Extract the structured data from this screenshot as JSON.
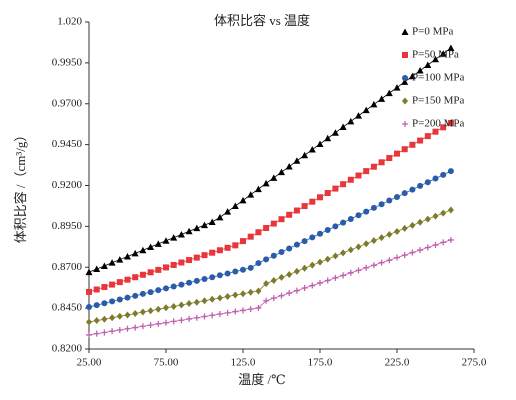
{
  "chart_data": {
    "type": "scatter",
    "title": "体积比容 vs 温度",
    "x_label": "温度 /℃",
    "y_label": "体积比容 /（cm³/g）",
    "xlim": [
      25,
      275
    ],
    "xticks": [
      {
        "value": 25,
        "label": "25.00"
      },
      {
        "value": 75,
        "label": "75.00"
      },
      {
        "value": 125,
        "label": "125.0"
      },
      {
        "value": 175,
        "label": "175.0"
      },
      {
        "value": 225,
        "label": "225.0"
      },
      {
        "value": 275,
        "label": "275.0"
      }
    ],
    "ylim": [
      0.82,
      1.02
    ],
    "yticks": [
      {
        "value": 0.82,
        "label": "0.8200"
      },
      {
        "value": 0.845,
        "label": "0.8450"
      },
      {
        "value": 0.87,
        "label": "0.8700"
      },
      {
        "value": 0.895,
        "label": "0.8950"
      },
      {
        "value": 0.92,
        "label": "0.9200"
      },
      {
        "value": 0.945,
        "label": "0.9450"
      },
      {
        "value": 0.97,
        "label": "0.9700"
      },
      {
        "value": 0.995,
        "label": "0.9950"
      },
      {
        "value": 1.02,
        "label": "1.020"
      }
    ],
    "legend": "top-right",
    "x": [
      25,
      30,
      35,
      40,
      45,
      50,
      55,
      60,
      65,
      70,
      75,
      80,
      85,
      90,
      95,
      100,
      105,
      110,
      115,
      120,
      125,
      130,
      135,
      140,
      145,
      150,
      155,
      160,
      165,
      170,
      175,
      180,
      185,
      190,
      195,
      200,
      205,
      210,
      215,
      220,
      225,
      230,
      235,
      240,
      245,
      250,
      255,
      260
    ],
    "series": [
      {
        "name": "P=0 MPa",
        "color": "#000000",
        "marker": "triangle",
        "values": [
          0.867,
          0.8689,
          0.8708,
          0.8728,
          0.8747,
          0.8766,
          0.8785,
          0.8804,
          0.8824,
          0.8843,
          0.8862,
          0.8881,
          0.89,
          0.892,
          0.8939,
          0.8958,
          0.8977,
          0.9005,
          0.904,
          0.9075,
          0.9109,
          0.9144,
          0.9178,
          0.9213,
          0.9247,
          0.9282,
          0.9316,
          0.9351,
          0.9385,
          0.942,
          0.9454,
          0.9489,
          0.9523,
          0.9558,
          0.9592,
          0.9627,
          0.9661,
          0.9696,
          0.973,
          0.9765,
          0.9799,
          0.9834,
          0.9868,
          0.9903,
          0.9937,
          0.9972,
          1.0006,
          1.0041
        ]
      },
      {
        "name": "P=50 MPa",
        "color": "#e8373a",
        "marker": "square",
        "values": [
          0.8549,
          0.8564,
          0.8579,
          0.8594,
          0.8609,
          0.8624,
          0.8639,
          0.8654,
          0.8669,
          0.8684,
          0.8699,
          0.8714,
          0.8729,
          0.8744,
          0.8759,
          0.8774,
          0.8789,
          0.8804,
          0.8819,
          0.8834,
          0.886,
          0.8887,
          0.8914,
          0.894,
          0.8967,
          0.8994,
          0.9021,
          0.9047,
          0.9074,
          0.9101,
          0.9128,
          0.9154,
          0.9181,
          0.9208,
          0.9235,
          0.9261,
          0.9288,
          0.9315,
          0.9342,
          0.9368,
          0.9395,
          0.9422,
          0.9449,
          0.9475,
          0.9502,
          0.9529,
          0.9556,
          0.9582
        ]
      },
      {
        "name": "P=100 MPa",
        "color": "#2a5caa",
        "marker": "circle",
        "values": [
          0.8457,
          0.8468,
          0.848,
          0.8491,
          0.8503,
          0.8514,
          0.8525,
          0.8537,
          0.8548,
          0.856,
          0.8571,
          0.8582,
          0.8594,
          0.8605,
          0.8617,
          0.8628,
          0.8639,
          0.8651,
          0.8662,
          0.8674,
          0.8685,
          0.8696,
          0.8725,
          0.8748,
          0.877,
          0.8793,
          0.8815,
          0.8838,
          0.886,
          0.8883,
          0.8905,
          0.8928,
          0.895,
          0.8973,
          0.8995,
          0.9018,
          0.904,
          0.9063,
          0.9085,
          0.9108,
          0.913,
          0.9153,
          0.9175,
          0.9198,
          0.922,
          0.9243,
          0.9265,
          0.9288
        ]
      },
      {
        "name": "P=150 MPa",
        "color": "#7d7a2a",
        "marker": "diamond",
        "values": [
          0.8365,
          0.8374,
          0.8382,
          0.8391,
          0.84,
          0.8408,
          0.8417,
          0.8426,
          0.8434,
          0.8443,
          0.8452,
          0.846,
          0.8469,
          0.8478,
          0.8486,
          0.8495,
          0.8504,
          0.8512,
          0.8521,
          0.853,
          0.8538,
          0.8547,
          0.8555,
          0.86,
          0.8619,
          0.8638,
          0.8656,
          0.8675,
          0.8694,
          0.8713,
          0.8731,
          0.875,
          0.8769,
          0.8788,
          0.8806,
          0.8825,
          0.8844,
          0.8863,
          0.8881,
          0.89,
          0.8919,
          0.8938,
          0.8956,
          0.8975,
          0.8994,
          0.9013,
          0.9031,
          0.905
        ]
      },
      {
        "name": "P=200 MPa",
        "color": "#c060b0",
        "marker": "plus",
        "values": [
          0.8286,
          0.8294,
          0.8301,
          0.8309,
          0.8316,
          0.8324,
          0.8331,
          0.8339,
          0.8346,
          0.8354,
          0.8361,
          0.8369,
          0.8376,
          0.8384,
          0.8391,
          0.8399,
          0.8406,
          0.8414,
          0.8421,
          0.8429,
          0.8436,
          0.8444,
          0.8451,
          0.8495,
          0.8511,
          0.8526,
          0.8542,
          0.8557,
          0.8573,
          0.8588,
          0.8604,
          0.8619,
          0.8635,
          0.865,
          0.8666,
          0.8681,
          0.8697,
          0.8712,
          0.8728,
          0.8743,
          0.8759,
          0.8774,
          0.879,
          0.8805,
          0.8821,
          0.8836,
          0.8852,
          0.8867
        ]
      }
    ]
  }
}
